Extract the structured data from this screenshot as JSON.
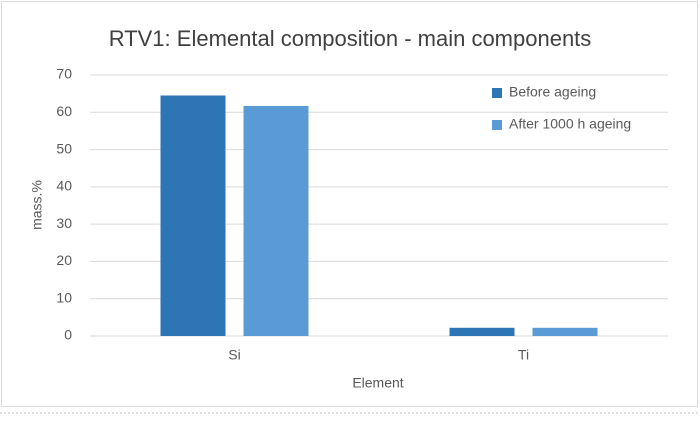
{
  "chart_data": {
    "type": "bar",
    "title": "RTV1: Elemental composition - main components",
    "x_label": "Element",
    "y_label": "mass.%",
    "categories": [
      "Si",
      "Ti"
    ],
    "series": [
      {
        "name": "Before ageing",
        "color": "#2e75b6",
        "values": [
          64.5,
          2.2
        ]
      },
      {
        "name": "After 1000 h ageing",
        "color": "#5b9bd5",
        "values": [
          61.7,
          2.2
        ]
      }
    ],
    "ylim": [
      0,
      70
    ],
    "yticks": [
      0,
      10,
      20,
      30,
      40,
      50,
      60,
      70
    ],
    "grid": true,
    "legend": "top-right"
  }
}
